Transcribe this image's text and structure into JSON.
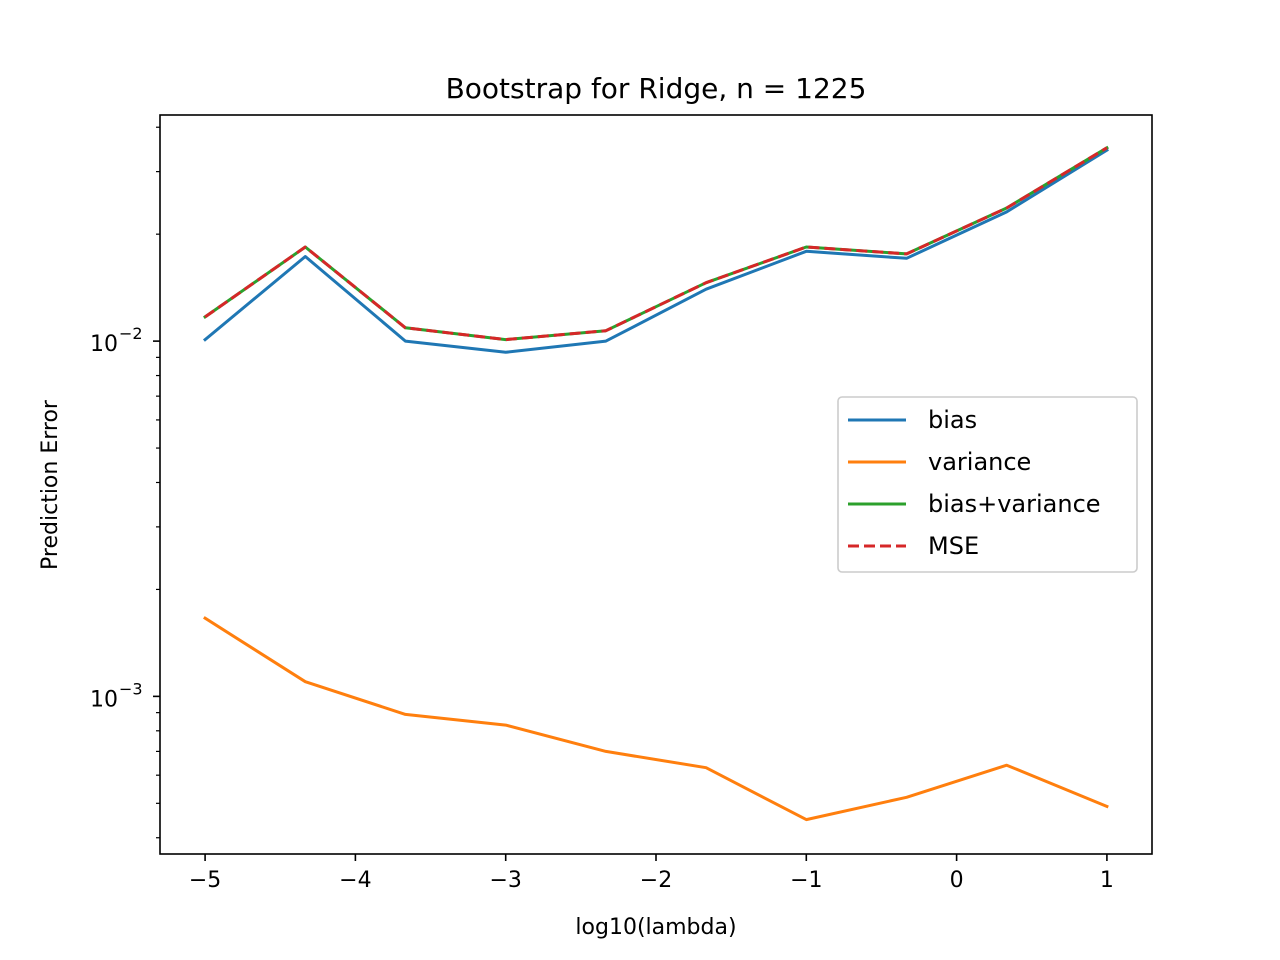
{
  "chart_data": {
    "type": "line",
    "title": "Bootstrap for Ridge, n = 1225",
    "xlabel": "log10(lambda)",
    "ylabel": "Prediction Error",
    "yscale": "log",
    "xlim": [
      -5.3,
      1.3
    ],
    "ylim": [
      0.00036,
      0.0433
    ],
    "x": [
      -5.0,
      -4.333,
      -3.667,
      -3.0,
      -2.333,
      -1.667,
      -1.0,
      -0.333,
      0.333,
      1.0
    ],
    "xticks": [
      -5,
      -4,
      -3,
      -2,
      -1,
      0,
      1
    ],
    "xtick_labels": [
      "−5",
      "−4",
      "−3",
      "−2",
      "−1",
      "0",
      "1"
    ],
    "yticks": [
      0.001,
      0.01
    ],
    "ytick_labels": [
      {
        "base": "10",
        "exp": "−3"
      },
      {
        "base": "10",
        "exp": "−2"
      }
    ],
    "series": [
      {
        "name": "bias",
        "color": "#1f77b4",
        "style": "solid",
        "values": [
          0.0101,
          0.0173,
          0.01,
          0.0093,
          0.01,
          0.014,
          0.0179,
          0.0171,
          0.0231,
          0.0345
        ]
      },
      {
        "name": "variance",
        "color": "#ff7f0e",
        "style": "solid",
        "values": [
          0.00166,
          0.0011,
          0.00089,
          0.00083,
          0.0007,
          0.00063,
          0.00045,
          0.00052,
          0.00064,
          0.00049
        ]
      },
      {
        "name": "bias+variance",
        "color": "#2ca02c",
        "style": "solid",
        "values": [
          0.0117,
          0.0184,
          0.0109,
          0.0101,
          0.0107,
          0.0146,
          0.0184,
          0.0176,
          0.0237,
          0.035
        ]
      },
      {
        "name": "MSE",
        "color": "#d62728",
        "style": "dashed",
        "values": [
          0.0117,
          0.0184,
          0.0109,
          0.0101,
          0.0107,
          0.0146,
          0.0184,
          0.0176,
          0.0237,
          0.035
        ]
      }
    ],
    "legend": {
      "placement": "center-right",
      "entries": [
        "bias",
        "variance",
        "bias+variance",
        "MSE"
      ]
    },
    "grid": false
  }
}
